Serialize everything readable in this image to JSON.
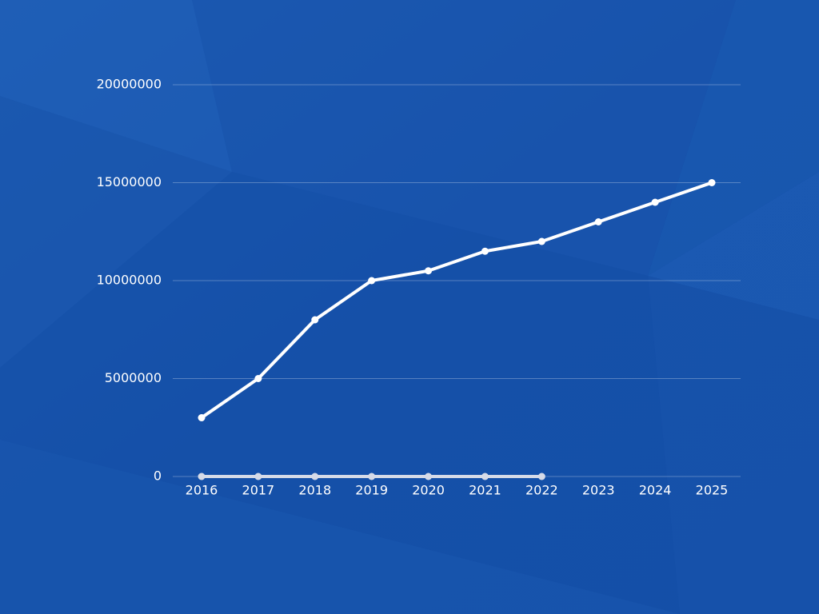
{
  "chart_data": {
    "type": "line",
    "categories": [
      "2016",
      "2017",
      "2018",
      "2019",
      "2020",
      "2021",
      "2022",
      "2023",
      "2024",
      "2025"
    ],
    "series": [
      {
        "color": "#ffffff",
        "values": [
          3000000,
          5000000,
          8000000,
          10000000,
          10500000,
          11500000,
          12000000,
          13000000,
          14000000,
          15000000
        ]
      },
      {
        "color": "#d6dbe8",
        "values": [
          0,
          0,
          0,
          0,
          0,
          0,
          0,
          null,
          null,
          null
        ]
      }
    ],
    "ylim": [
      0,
      20000000
    ],
    "yticks": [
      0,
      5000000,
      10000000,
      15000000,
      20000000
    ],
    "grid": true
  }
}
